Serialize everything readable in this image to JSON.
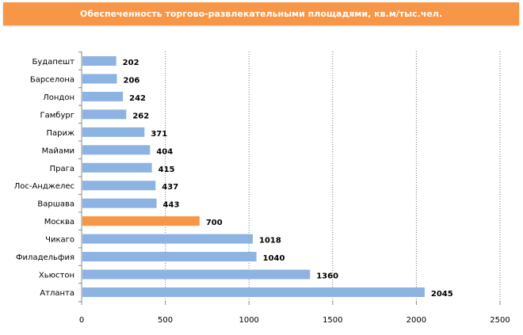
{
  "header": {
    "title": "Обеспеченность торгово-развлекательными  площадями, кв.м/тыс.чел."
  },
  "chart_data": {
    "type": "bar",
    "orientation": "horizontal",
    "title": "Обеспеченность торгово-развлекательными  площадями, кв.м/тыс.чел.",
    "categories": [
      "Будапешт",
      "Барселона",
      "Лондон",
      "Гамбург",
      "Париж",
      "Майами",
      "Прага",
      "Лос-Анджелес",
      "Варшава",
      "Москва",
      "Чикаго",
      "Филадельфия",
      "Хьюстон",
      "Атланта"
    ],
    "values": [
      202,
      206,
      242,
      262,
      371,
      404,
      415,
      437,
      443,
      700,
      1018,
      1040,
      1360,
      2045
    ],
    "highlight": "Москва",
    "xlim": [
      0,
      2500
    ],
    "xticks": [
      0,
      500,
      1000,
      1500,
      2000,
      2500
    ],
    "grid": "vertical dotted",
    "colors": {
      "bar": "#8db3e2",
      "highlight": "#f79646",
      "header": "#f79646"
    }
  }
}
